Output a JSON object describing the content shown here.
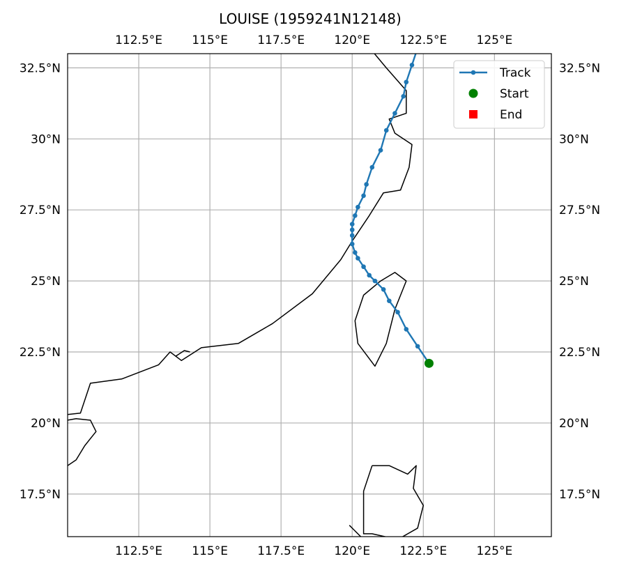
{
  "title": "LOUISE (1959241N12148)",
  "map": {
    "lon_range": [
      110,
      127
    ],
    "lat_range": [
      16,
      33
    ],
    "x_ticks": [
      112.5,
      115,
      117.5,
      120,
      122.5,
      125
    ],
    "x_tick_labels": [
      "112.5°E",
      "115°E",
      "117.5°E",
      "120°E",
      "122.5°E",
      "125°E"
    ],
    "y_ticks": [
      17.5,
      20,
      22.5,
      25,
      27.5,
      30,
      32.5
    ],
    "y_tick_labels": [
      "17.5°N",
      "20°N",
      "22.5°N",
      "25°N",
      "27.5°N",
      "30°N",
      "32.5°N"
    ],
    "grid": true,
    "grid_color": "#b0b0b0",
    "coast_color": "#000000"
  },
  "legend": {
    "placement": "top-right",
    "items": [
      {
        "label": "Track",
        "marker": "line-dot",
        "color": "#1f77b4"
      },
      {
        "label": "Start",
        "marker": "circle",
        "color": "#008000"
      },
      {
        "label": "End",
        "marker": "square",
        "color": "#ff0000"
      }
    ]
  },
  "chart_data": {
    "type": "line",
    "title": "LOUISE (1959241N12148)",
    "series": [
      {
        "name": "Track",
        "color": "#1f77b4",
        "points": [
          {
            "lon": 122.7,
            "lat": 22.1
          },
          {
            "lon": 122.3,
            "lat": 22.7
          },
          {
            "lon": 121.9,
            "lat": 23.3
          },
          {
            "lon": 121.6,
            "lat": 23.9
          },
          {
            "lon": 121.3,
            "lat": 24.3
          },
          {
            "lon": 121.1,
            "lat": 24.7
          },
          {
            "lon": 120.8,
            "lat": 25.0
          },
          {
            "lon": 120.6,
            "lat": 25.2
          },
          {
            "lon": 120.4,
            "lat": 25.5
          },
          {
            "lon": 120.2,
            "lat": 25.8
          },
          {
            "lon": 120.1,
            "lat": 26.0
          },
          {
            "lon": 120.0,
            "lat": 26.3
          },
          {
            "lon": 120.0,
            "lat": 26.6
          },
          {
            "lon": 120.0,
            "lat": 26.8
          },
          {
            "lon": 120.0,
            "lat": 27.0
          },
          {
            "lon": 120.1,
            "lat": 27.3
          },
          {
            "lon": 120.2,
            "lat": 27.6
          },
          {
            "lon": 120.4,
            "lat": 28.0
          },
          {
            "lon": 120.5,
            "lat": 28.4
          },
          {
            "lon": 120.7,
            "lat": 29.0
          },
          {
            "lon": 121.0,
            "lat": 29.6
          },
          {
            "lon": 121.2,
            "lat": 30.3
          },
          {
            "lon": 121.5,
            "lat": 30.9
          },
          {
            "lon": 121.8,
            "lat": 31.5
          },
          {
            "lon": 121.9,
            "lat": 32.0
          },
          {
            "lon": 122.1,
            "lat": 32.6
          },
          {
            "lon": 122.3,
            "lat": 33.2
          }
        ]
      }
    ],
    "start": {
      "lon": 122.7,
      "lat": 22.1
    },
    "end": {
      "lon": 122.3,
      "lat": 33.2
    }
  },
  "coastlines": [
    [
      [
        110.0,
        20.3
      ],
      [
        110.45,
        20.35
      ],
      [
        110.8,
        21.4
      ],
      [
        111.9,
        21.55
      ],
      [
        113.2,
        22.05
      ],
      [
        113.6,
        22.5
      ],
      [
        114.0,
        22.2
      ],
      [
        114.7,
        22.65
      ],
      [
        116.0,
        22.8
      ],
      [
        117.2,
        23.5
      ],
      [
        118.6,
        24.55
      ],
      [
        119.6,
        25.75
      ],
      [
        120.0,
        26.4
      ],
      [
        120.6,
        27.3
      ],
      [
        121.1,
        28.1
      ],
      [
        121.7,
        28.2
      ],
      [
        122.0,
        29.0
      ],
      [
        122.1,
        29.8
      ],
      [
        121.5,
        30.2
      ],
      [
        121.3,
        30.7
      ],
      [
        121.9,
        30.9
      ],
      [
        121.9,
        31.7
      ],
      [
        121.2,
        32.5
      ],
      [
        120.7,
        33.1
      ]
    ],
    [
      [
        110.0,
        20.1
      ],
      [
        110.3,
        20.15
      ],
      [
        110.8,
        20.1
      ],
      [
        111.0,
        19.7
      ],
      [
        110.6,
        19.2
      ],
      [
        110.3,
        18.7
      ],
      [
        110.0,
        18.5
      ]
    ],
    [
      [
        121.0,
        25.0
      ],
      [
        121.5,
        25.3
      ],
      [
        121.9,
        25.0
      ],
      [
        121.5,
        24.0
      ],
      [
        121.2,
        22.8
      ],
      [
        120.8,
        22.0
      ],
      [
        120.2,
        22.8
      ],
      [
        120.1,
        23.6
      ],
      [
        120.4,
        24.5
      ],
      [
        121.0,
        25.0
      ]
    ],
    [
      [
        120.7,
        18.5
      ],
      [
        121.3,
        18.5
      ],
      [
        121.95,
        18.2
      ],
      [
        122.25,
        18.5
      ],
      [
        122.15,
        17.7
      ],
      [
        122.5,
        17.1
      ],
      [
        122.3,
        16.3
      ],
      [
        121.6,
        15.9
      ],
      [
        120.7,
        16.1
      ],
      [
        120.4,
        16.1
      ],
      [
        120.4,
        17.6
      ],
      [
        120.7,
        18.5
      ]
    ],
    [
      [
        119.9,
        16.4
      ],
      [
        120.3,
        16.0
      ]
    ],
    [
      [
        113.8,
        22.35
      ],
      [
        114.1,
        22.55
      ],
      [
        114.3,
        22.5
      ]
    ]
  ]
}
